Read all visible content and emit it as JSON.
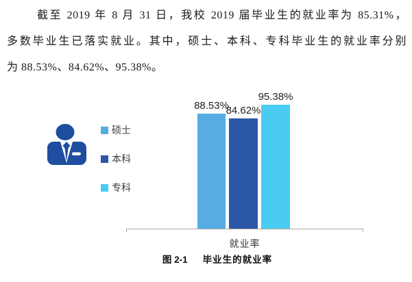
{
  "paragraph": {
    "lines": [
      "截至 2019 年 8 月 31 日，我校 2019 届毕业生的就业率为 85.31%，",
      "多数毕业生已落实就业。其中，硕士、本科、专科毕业生的就业率分别",
      "为 88.53%、84.62%、95.38%。"
    ]
  },
  "chart_data": {
    "type": "bar",
    "categories": [
      "就业率"
    ],
    "series": [
      {
        "name": "硕士",
        "values": [
          88.53
        ],
        "label": "88.53%",
        "color": "#56ADE1"
      },
      {
        "name": "本科",
        "values": [
          84.62
        ],
        "label": "84.62%",
        "color": "#2A57A7"
      },
      {
        "name": "专科",
        "values": [
          95.38
        ],
        "label": "95.38%",
        "color": "#4ACBF1"
      }
    ],
    "xlabel": "就业率",
    "ylabel": "",
    "ylim": [
      0,
      100
    ],
    "grid": false,
    "legend_position": "left",
    "data_labels_shown": true,
    "axis_color": "#a6a6a6"
  },
  "figure": {
    "caption_number": "图 2-1",
    "caption_title": "毕业生的就业率",
    "icon": {
      "name": "businessman-icon",
      "color": "#1F4E9E"
    }
  }
}
